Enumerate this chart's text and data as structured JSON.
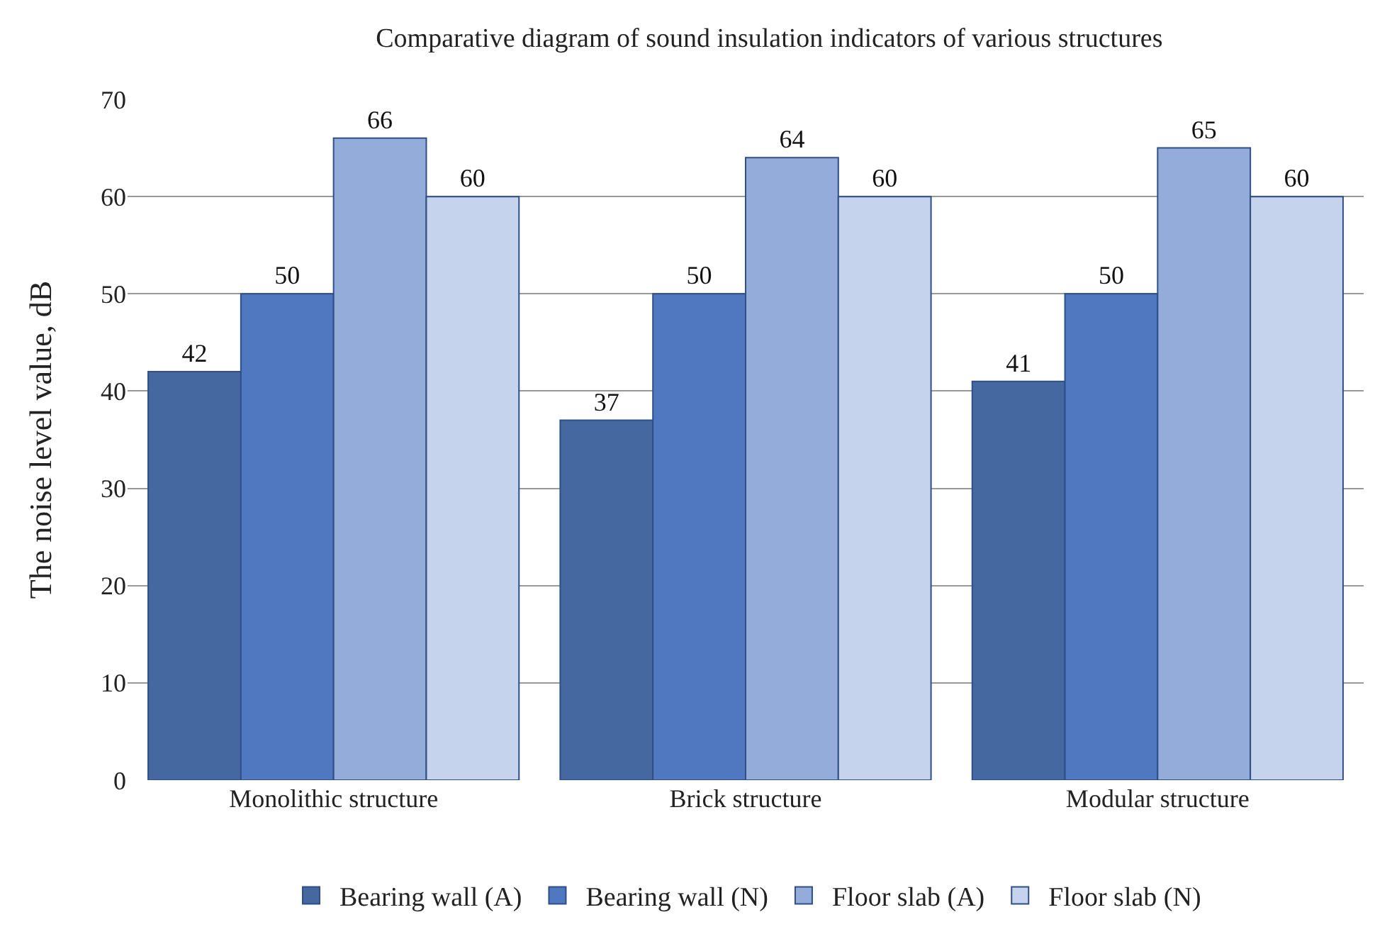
{
  "chart_data": {
    "type": "bar",
    "title": "Comparative diagram of sound insulation indicators of various structures",
    "ylabel": "The noise level value, dB",
    "categories": [
      "Monolithic structure",
      "Brick structure",
      "Modular structure"
    ],
    "series": [
      {
        "name": "Bearing wall (A)",
        "color": "#44689f",
        "values": [
          42,
          37,
          41
        ]
      },
      {
        "name": "Bearing wall (N)",
        "color": "#4f78c0",
        "values": [
          50,
          50,
          50
        ]
      },
      {
        "name": "Floor slab (A)",
        "color": "#94acd9",
        "values": [
          66,
          64,
          65
        ]
      },
      {
        "name": "Floor slab (N)",
        "color": "#c5d4ec",
        "values": [
          60,
          60,
          60
        ]
      }
    ],
    "ylim": [
      0,
      70
    ],
    "yticks": [
      0,
      10,
      20,
      30,
      40,
      50,
      60,
      70
    ],
    "grid": "y",
    "legend": "bottom",
    "data_labels": true
  }
}
